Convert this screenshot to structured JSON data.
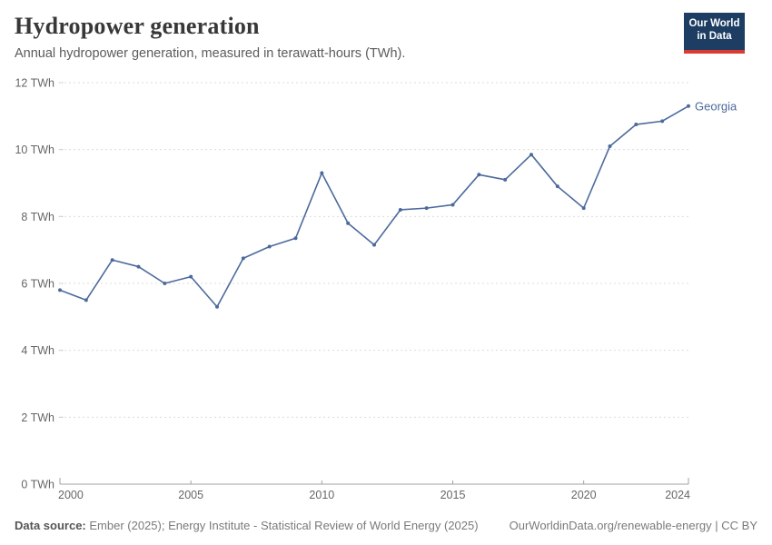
{
  "header": {
    "title": "Hydropower generation",
    "subtitle": "Annual hydropower generation, measured in terawatt-hours (TWh)."
  },
  "logo": {
    "line1": "Our World",
    "line2": "in Data",
    "bg_color": "#1d3d63",
    "bar_color": "#dc3b31"
  },
  "chart_data": {
    "type": "line",
    "title": "Hydropower generation",
    "xlabel": "",
    "ylabel": "TWh",
    "unit": "TWh",
    "xlim": [
      2000,
      2024
    ],
    "ylim": [
      0,
      12
    ],
    "x_ticks": [
      2000,
      2005,
      2010,
      2015,
      2020,
      2024
    ],
    "y_ticks": [
      0,
      2,
      4,
      6,
      8,
      10,
      12
    ],
    "grid": "horizontal-dashed",
    "legend_position": "end-of-line-label",
    "x": [
      2000,
      2001,
      2002,
      2003,
      2004,
      2005,
      2006,
      2007,
      2008,
      2009,
      2010,
      2011,
      2012,
      2013,
      2014,
      2015,
      2016,
      2017,
      2018,
      2019,
      2020,
      2021,
      2022,
      2023,
      2024
    ],
    "series": [
      {
        "name": "Georgia",
        "color": "#4c6a9c",
        "values": [
          5.8,
          5.5,
          6.7,
          6.5,
          6.0,
          6.2,
          5.3,
          6.75,
          7.1,
          7.35,
          9.3,
          7.8,
          7.15,
          8.2,
          8.25,
          8.35,
          9.25,
          9.1,
          9.85,
          8.9,
          8.25,
          10.1,
          10.75,
          10.85,
          11.3
        ]
      }
    ],
    "colors": {
      "gridline": "#dcdcdc",
      "axis": "#a1a1a1",
      "tick_label": "#666666"
    }
  },
  "footer": {
    "source_label": "Data source:",
    "source_text": " Ember (2025); Energy Institute - Statistical Review of World Energy (2025)",
    "link_text": "OurWorldinData.org/renewable-energy | CC BY"
  }
}
